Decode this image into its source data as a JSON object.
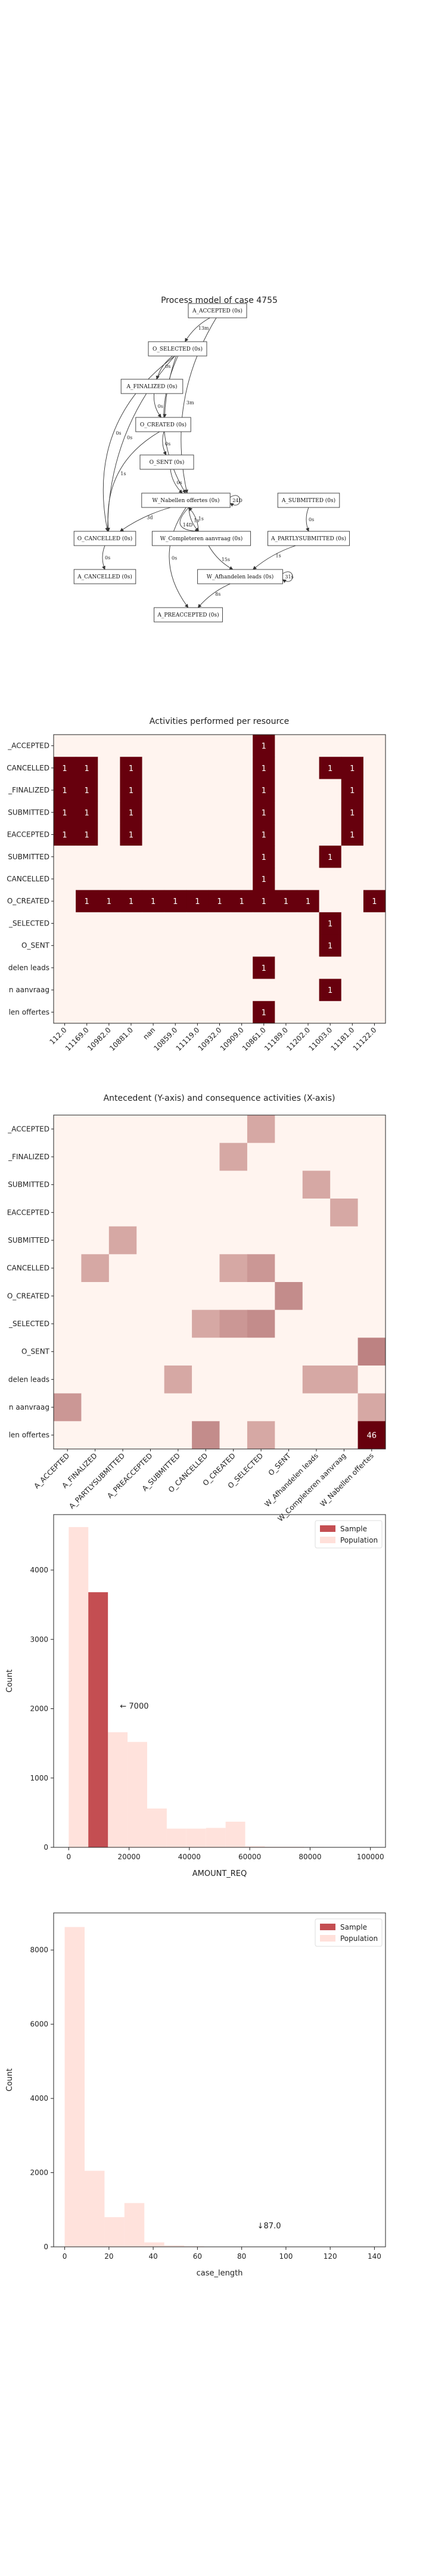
{
  "process_model": {
    "title": "Process model of case 4755",
    "nodes": [
      {
        "id": "a_accepted",
        "label": "A_ACCEPTED (0s)"
      },
      {
        "id": "o_selected",
        "label": "O_SELECTED (0s)"
      },
      {
        "id": "a_finalized",
        "label": "A_FINALIZED (0s)"
      },
      {
        "id": "o_created",
        "label": "O_CREATED (0s)"
      },
      {
        "id": "o_sent",
        "label": "O_SENT (0s)"
      },
      {
        "id": "a_submitted",
        "label": "A_SUBMITTED (0s)"
      },
      {
        "id": "w_nabellen",
        "label": "W_Nabellen offertes (0s)"
      },
      {
        "id": "o_cancelled",
        "label": "O_CANCELLED (0s)"
      },
      {
        "id": "w_completeren",
        "label": "W_Completeren aanvraag (0s)"
      },
      {
        "id": "a_partlysubmitted",
        "label": "A_PARTLYSUBMITTED (0s)"
      },
      {
        "id": "a_cancelled",
        "label": "A_CANCELLED (0s)"
      },
      {
        "id": "w_afhandelen",
        "label": "W_Afhandelen leads (0s)"
      },
      {
        "id": "a_preaccepted",
        "label": "A_PREACCEPTED (0s)"
      }
    ],
    "edges": [
      {
        "from": "a_accepted",
        "to": "o_selected",
        "label": "13m"
      },
      {
        "from": "o_selected",
        "to": "a_finalized",
        "label": "0s"
      },
      {
        "from": "o_selected",
        "to": "o_created",
        "label": "1s"
      },
      {
        "from": "a_finalized",
        "to": "o_created",
        "label": "0s"
      },
      {
        "from": "o_created",
        "to": "o_sent",
        "label": "0s"
      },
      {
        "from": "o_sent",
        "to": "w_nabellen",
        "label": "0s"
      },
      {
        "from": "o_selected",
        "to": "o_cancelled",
        "label": "0s"
      },
      {
        "from": "o_selected",
        "to": "o_cancelled",
        "label": "0s"
      },
      {
        "from": "o_created",
        "to": "o_cancelled",
        "label": "1s"
      },
      {
        "from": "o_selected",
        "to": "w_nabellen",
        "label": "3m"
      },
      {
        "from": "a_accepted",
        "to": "w_nabellen",
        "label": "3m"
      },
      {
        "from": "w_nabellen",
        "to": "w_nabellen",
        "label": "24D"
      },
      {
        "from": "w_nabellen",
        "to": "o_cancelled",
        "label": "3d"
      },
      {
        "from": "w_nabellen",
        "to": "w_completeren",
        "label": "1s"
      },
      {
        "from": "w_nabellen",
        "to": "w_completeren",
        "label": "14D"
      },
      {
        "from": "w_completeren",
        "to": "w_nabellen",
        "label": "1s"
      },
      {
        "from": "w_completeren",
        "to": "w_afhandelen",
        "label": "15s"
      },
      {
        "from": "a_submitted",
        "to": "a_partlysubmitted",
        "label": "0s"
      },
      {
        "from": "a_partlysubmitted",
        "to": "w_afhandelen",
        "label": "1s"
      },
      {
        "from": "o_cancelled",
        "to": "a_cancelled",
        "label": "0s"
      },
      {
        "from": "w_afhandelen",
        "to": "w_afhandelen",
        "label": "31s"
      },
      {
        "from": "w_afhandelen",
        "to": "a_preaccepted",
        "label": "8s"
      },
      {
        "from": "w_nabellen",
        "to": "a_preaccepted",
        "label": "0s"
      }
    ]
  },
  "chart_data": [
    {
      "type": "heatmap",
      "title": "Activities performed per resource",
      "rows": [
        "A_ACCEPTED",
        "A_CANCELLED",
        "A_FINALIZED",
        "A_PARTLYSUBMITTED",
        "A_PREACCEPTED",
        "A_SUBMITTED",
        "O_CANCELLED",
        "O_CREATED",
        "O_SELECTED",
        "O_SENT",
        "W_Afhandelen leads",
        "W_Completeren aanvraag",
        "W_Nabellen offertes"
      ],
      "row_labels_visible": [
        "_ACCEPTED",
        "CANCELLED",
        "_FINALIZED",
        "SUBMITTED",
        "EACCEPTED",
        "SUBMITTED",
        "CANCELLED",
        "O_CREATED",
        "_SELECTED",
        "O_SENT",
        "delen leads",
        "n aanvraag",
        "len offertes"
      ],
      "columns": [
        "112.0",
        "11169.0",
        "10982.0",
        "10881.0",
        "nan",
        "10859.0",
        "11119.0",
        "10932.0",
        "10909.0",
        "10861.0",
        "11189.0",
        "11202.0",
        "11003.0",
        "11181.0",
        "11122.0"
      ],
      "cells": [
        {
          "row": 0,
          "col": 9,
          "value": 1
        },
        {
          "row": 1,
          "col": 0,
          "value": 1
        },
        {
          "row": 1,
          "col": 1,
          "value": 1
        },
        {
          "row": 1,
          "col": 3,
          "value": 1
        },
        {
          "row": 1,
          "col": 9,
          "value": 1
        },
        {
          "row": 1,
          "col": 12,
          "value": 1
        },
        {
          "row": 1,
          "col": 13,
          "value": 1
        },
        {
          "row": 2,
          "col": 0,
          "value": 1
        },
        {
          "row": 2,
          "col": 1,
          "value": 1
        },
        {
          "row": 2,
          "col": 3,
          "value": 1
        },
        {
          "row": 2,
          "col": 9,
          "value": 1
        },
        {
          "row": 2,
          "col": 13,
          "value": 1
        },
        {
          "row": 3,
          "col": 0,
          "value": 1
        },
        {
          "row": 3,
          "col": 1,
          "value": 1
        },
        {
          "row": 3,
          "col": 3,
          "value": 1
        },
        {
          "row": 3,
          "col": 9,
          "value": 1
        },
        {
          "row": 3,
          "col": 13,
          "value": 1
        },
        {
          "row": 4,
          "col": 0,
          "value": 1
        },
        {
          "row": 4,
          "col": 1,
          "value": 1
        },
        {
          "row": 4,
          "col": 3,
          "value": 1
        },
        {
          "row": 4,
          "col": 9,
          "value": 1
        },
        {
          "row": 4,
          "col": 13,
          "value": 1
        },
        {
          "row": 5,
          "col": 9,
          "value": 1
        },
        {
          "row": 5,
          "col": 12,
          "value": 1
        },
        {
          "row": 6,
          "col": 9,
          "value": 1
        },
        {
          "row": 7,
          "col": 1,
          "value": 1
        },
        {
          "row": 7,
          "col": 2,
          "value": 1
        },
        {
          "row": 7,
          "col": 3,
          "value": 1
        },
        {
          "row": 7,
          "col": 4,
          "value": 1
        },
        {
          "row": 7,
          "col": 5,
          "value": 1
        },
        {
          "row": 7,
          "col": 6,
          "value": 1
        },
        {
          "row": 7,
          "col": 7,
          "value": 1
        },
        {
          "row": 7,
          "col": 8,
          "value": 1
        },
        {
          "row": 7,
          "col": 9,
          "value": 1
        },
        {
          "row": 7,
          "col": 10,
          "value": 1
        },
        {
          "row": 7,
          "col": 11,
          "value": 1
        },
        {
          "row": 7,
          "col": 14,
          "value": 1
        },
        {
          "row": 8,
          "col": 12,
          "value": 1
        },
        {
          "row": 9,
          "col": 12,
          "value": 1
        },
        {
          "row": 10,
          "col": 9,
          "value": 1
        },
        {
          "row": 11,
          "col": 12,
          "value": 1
        },
        {
          "row": 12,
          "col": 9,
          "value": 1
        }
      ],
      "colors": {
        "empty": "#fff4ef",
        "full": "#67000d",
        "text_on_full": "#ffffff"
      }
    },
    {
      "type": "heatmap",
      "title": "Antecedent (Y-axis) and consequence activities (X-axis)",
      "rows": [
        "A_ACCEPTED",
        "A_FINALIZED",
        "A_PARTLYSUBMITTED",
        "A_PREACCEPTED",
        "A_SUBMITTED",
        "O_CANCELLED",
        "O_CREATED",
        "O_SELECTED",
        "O_SENT",
        "W_Afhandelen leads",
        "W_Completeren aanvraag",
        "W_Nabellen offertes"
      ],
      "row_labels_visible": [
        "_ACCEPTED",
        "_FINALIZED",
        "SUBMITTED",
        "EACCEPTED",
        "SUBMITTED",
        "CANCELLED",
        "O_CREATED",
        "_SELECTED",
        "O_SENT",
        "delen leads",
        "n aanvraag",
        "len offertes"
      ],
      "columns": [
        "A_ACCEPTED",
        "A_FINALIZED",
        "A_PARTLYSUBMITTED",
        "A_PREACCEPTED",
        "A_SUBMITTED",
        "O_CANCELLED",
        "O_CREATED",
        "O_SELECTED",
        "O_SENT",
        "W_Afhandelen leads",
        "W_Completeren aanvraag",
        "W_Nabellen offertes"
      ],
      "column_labels_visible": [
        "A_ACCEPTED",
        "A_FINALIZED",
        "A_PARTLYSUBMITTED",
        "A_PREACCEPTED",
        "A_SUBMITTED",
        "O_CANCELLED",
        "O_CREATED",
        "O_SELECTED",
        "O_SENT",
        "W_Afhandelen leads",
        "W_Completeren aanvraag",
        "W_Nabellen offertes"
      ],
      "cells": [
        {
          "row": 0,
          "col": 7,
          "value": 1
        },
        {
          "row": 1,
          "col": 6,
          "value": 1
        },
        {
          "row": 2,
          "col": 9,
          "value": 1
        },
        {
          "row": 3,
          "col": 10,
          "value": 1
        },
        {
          "row": 4,
          "col": 2,
          "value": 1
        },
        {
          "row": 5,
          "col": 1,
          "value": 1
        },
        {
          "row": 5,
          "col": 6,
          "value": 1
        },
        {
          "row": 5,
          "col": 7,
          "value": 2
        },
        {
          "row": 6,
          "col": 8,
          "value": 3
        },
        {
          "row": 7,
          "col": 5,
          "value": 1
        },
        {
          "row": 7,
          "col": 6,
          "value": 2
        },
        {
          "row": 7,
          "col": 7,
          "value": 3
        },
        {
          "row": 8,
          "col": 11,
          "value": 4
        },
        {
          "row": 9,
          "col": 4,
          "value": 1
        },
        {
          "row": 9,
          "col": 9,
          "value": 1
        },
        {
          "row": 9,
          "col": 10,
          "value": 1
        },
        {
          "row": 10,
          "col": 0,
          "value": 2
        },
        {
          "row": 10,
          "col": 11,
          "value": 1
        },
        {
          "row": 11,
          "col": 5,
          "value": 3
        },
        {
          "row": 11,
          "col": 7,
          "value": 1
        },
        {
          "row": 11,
          "col": 11,
          "value": 46
        }
      ],
      "labeled_cells": [
        {
          "row": 11,
          "col": 11,
          "text": "46"
        }
      ],
      "colors": {
        "empty": "#fff4ef",
        "full": "#67000d",
        "text_on_full": "#ffffff"
      }
    },
    {
      "type": "bar",
      "xlabel": "AMOUNT_REQ",
      "ylabel": "Count",
      "xlim": [
        -5000,
        105000
      ],
      "ylim": [
        0,
        4800
      ],
      "xticks": [
        0,
        20000,
        40000,
        60000,
        80000,
        100000
      ],
      "yticks": [
        0,
        1000,
        2000,
        3000,
        4000
      ],
      "bin_width": 6500,
      "series": [
        {
          "name": "Sample",
          "color": "#c44e52",
          "bins": [
            {
              "x0": 6500,
              "x1": 13000,
              "y": 3680
            }
          ]
        },
        {
          "name": "Population",
          "color": "#ffe0da",
          "bins": [
            {
              "x0": 0,
              "x1": 6500,
              "y": 4620
            },
            {
              "x0": 6500,
              "x1": 13000,
              "y": 3680
            },
            {
              "x0": 13000,
              "x1": 19500,
              "y": 1660
            },
            {
              "x0": 19500,
              "x1": 26000,
              "y": 1520
            },
            {
              "x0": 26000,
              "x1": 32500,
              "y": 560
            },
            {
              "x0": 32500,
              "x1": 39000,
              "y": 270
            },
            {
              "x0": 39000,
              "x1": 45500,
              "y": 270
            },
            {
              "x0": 45500,
              "x1": 52000,
              "y": 280
            },
            {
              "x0": 52000,
              "x1": 58500,
              "y": 370
            },
            {
              "x0": 58500,
              "x1": 65000,
              "y": 15
            },
            {
              "x0": 65000,
              "x1": 71500,
              "y": 8
            },
            {
              "x0": 71500,
              "x1": 78000,
              "y": 8
            },
            {
              "x0": 78000,
              "x1": 84500,
              "y": 5
            },
            {
              "x0": 84500,
              "x1": 91000,
              "y": 3
            },
            {
              "x0": 91000,
              "x1": 97500,
              "y": 3
            },
            {
              "x0": 97500,
              "x1": 104000,
              "y": 3
            }
          ]
        }
      ],
      "annotation": {
        "text": "← 7000",
        "x": 17000,
        "y": 2000
      },
      "legend": {
        "placement": "top-right",
        "entries": [
          "Sample",
          "Population"
        ]
      }
    },
    {
      "type": "bar",
      "xlabel": "case_length",
      "ylabel": "Count",
      "xlim": [
        -5,
        145
      ],
      "ylim": [
        0,
        9000
      ],
      "xticks": [
        0,
        20,
        40,
        60,
        80,
        100,
        120,
        140
      ],
      "yticks": [
        0,
        2000,
        4000,
        6000,
        8000
      ],
      "series": [
        {
          "name": "Sample",
          "color": "#c44e52",
          "bins": []
        },
        {
          "name": "Population",
          "color": "#ffe0da",
          "bins": [
            {
              "x0": 0,
              "x1": 9,
              "y": 8620
            },
            {
              "x0": 9,
              "x1": 18,
              "y": 2050
            },
            {
              "x0": 18,
              "x1": 27,
              "y": 800
            },
            {
              "x0": 27,
              "x1": 36,
              "y": 1180
            },
            {
              "x0": 36,
              "x1": 45,
              "y": 120
            },
            {
              "x0": 45,
              "x1": 54,
              "y": 40
            },
            {
              "x0": 54,
              "x1": 63,
              "y": 15
            },
            {
              "x0": 63,
              "x1": 72,
              "y": 8
            },
            {
              "x0": 72,
              "x1": 81,
              "y": 5
            },
            {
              "x0": 81,
              "x1": 90,
              "y": 3
            },
            {
              "x0": 90,
              "x1": 99,
              "y": 2
            }
          ]
        }
      ],
      "annotation": {
        "text": "↓87.0",
        "x": 87,
        "y": 500
      },
      "legend": {
        "placement": "top-right",
        "entries": [
          "Sample",
          "Population"
        ]
      }
    }
  ]
}
